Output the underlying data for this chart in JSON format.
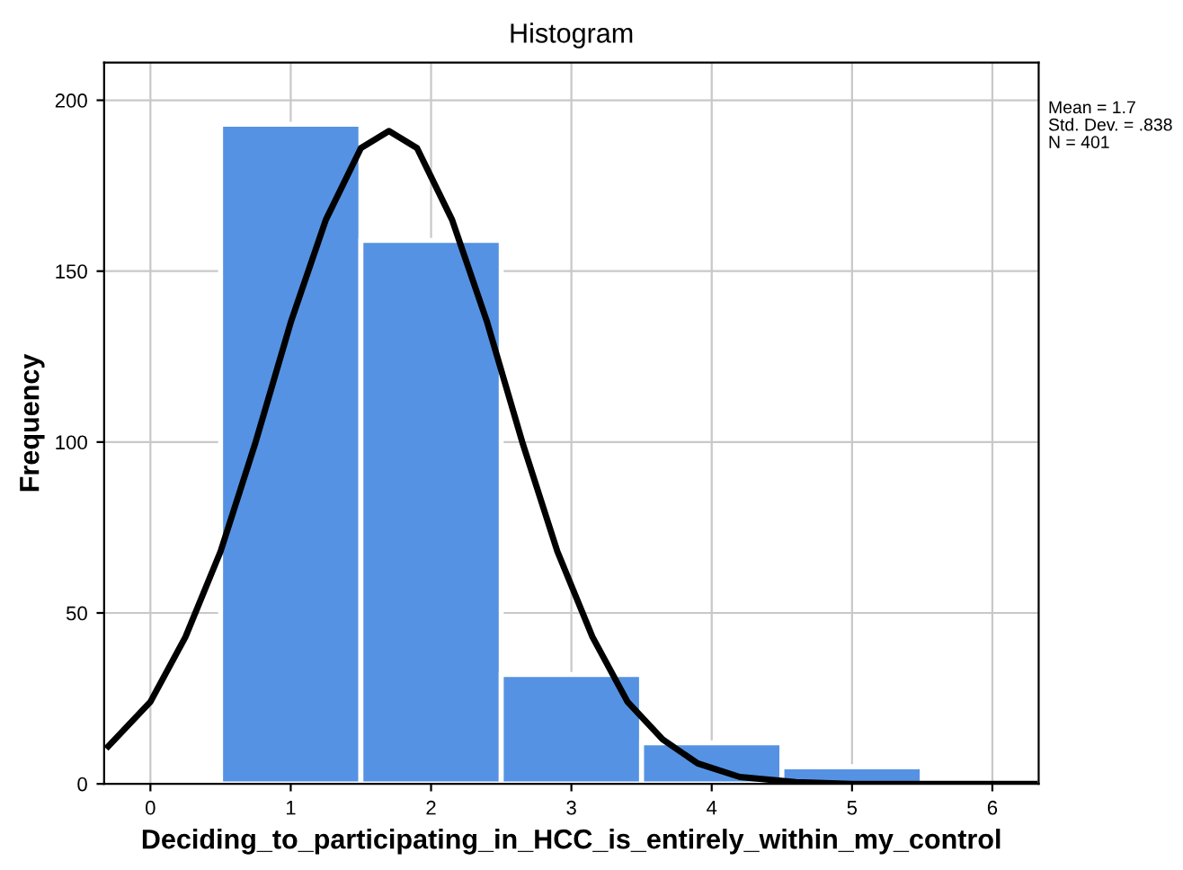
{
  "chart_data": {
    "type": "histogram",
    "title": "Histogram",
    "xlabel": "Deciding_to_participating_in_HCC_is_entirely_within_my_control",
    "ylabel": "Frequency",
    "series": [
      {
        "bins": [
          0.5,
          1.5,
          2.5,
          3.5,
          4.5,
          5.5
        ],
        "values": [
          193,
          159,
          32,
          12,
          5
        ],
        "color": "#5592e3"
      },
      {
        "type": "line",
        "x": [
          -0.3,
          0,
          0.25,
          0.5,
          0.75,
          1.0,
          1.25,
          1.5,
          1.7,
          1.9,
          2.15,
          2.4,
          2.65,
          2.9,
          3.15,
          3.4,
          3.65,
          3.9,
          4.2,
          4.6,
          5.0,
          5.5,
          6.3
        ],
        "values": [
          11,
          24,
          43,
          68,
          100,
          135,
          165,
          186,
          191,
          186,
          165,
          135,
          100,
          68,
          43,
          24,
          13,
          6,
          2,
          0.5,
          0,
          0,
          0
        ],
        "color": "#000000"
      }
    ],
    "xlim": [
      -0.33,
      6.33
    ],
    "ylim": [
      0,
      211
    ],
    "xticks": [
      0,
      1,
      2,
      3,
      4,
      5,
      6
    ],
    "yticks": [
      0,
      50,
      100,
      150,
      200
    ],
    "grid": true,
    "annotations": [
      "Mean = 1.7",
      "Std. Dev. = .838",
      "N = 401"
    ]
  }
}
